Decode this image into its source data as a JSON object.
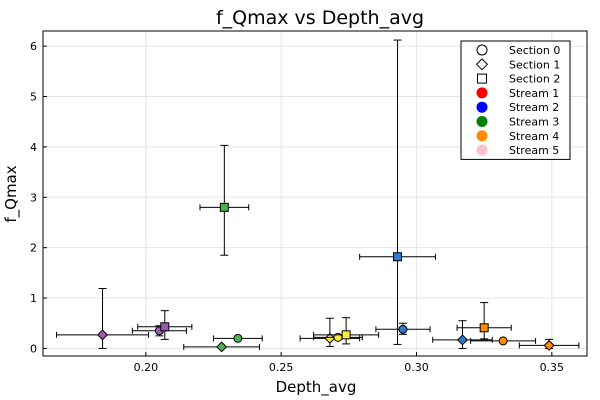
{
  "chart_data": {
    "type": "scatter",
    "title": "f_Qmax vs Depth_avg",
    "xlabel": "Depth_avg",
    "ylabel": "f_Qmax",
    "xlim": [
      0.162,
      0.363
    ],
    "ylim": [
      -0.15,
      6.3
    ],
    "xticks": [
      0.2,
      0.25,
      0.3,
      0.35
    ],
    "xtick_labels": [
      "0.20",
      "0.25",
      "0.30",
      "0.35"
    ],
    "yticks": [
      0,
      1,
      2,
      3,
      4,
      5,
      6
    ],
    "ytick_labels": [
      "0",
      "1",
      "2",
      "3",
      "4",
      "5",
      "6"
    ],
    "grid": true,
    "legend_position": "top-right",
    "legend": [
      {
        "label": "Section 0",
        "marker": "circle",
        "color": "#ffffff"
      },
      {
        "label": "Section 1",
        "marker": "diamond",
        "color": "#ffffff"
      },
      {
        "label": "Section 2",
        "marker": "square",
        "color": "#ffffff"
      },
      {
        "label": "Stream 1",
        "marker": "circle",
        "color": "#ff0000"
      },
      {
        "label": "Stream 2",
        "marker": "circle",
        "color": "#0000ff"
      },
      {
        "label": "Stream 3",
        "marker": "circle",
        "color": "#008000"
      },
      {
        "label": "Stream 4",
        "marker": "circle",
        "color": "#ff8c00"
      },
      {
        "label": "Stream 5",
        "marker": "circle",
        "color": "#ffc0cb"
      }
    ],
    "points": [
      {
        "x": 0.184,
        "y": 0.27,
        "xerr": 0.017,
        "yerr_low": 0.27,
        "yerr_high": 0.92,
        "marker": "diamond",
        "color": "#9b59b6"
      },
      {
        "x": 0.205,
        "y": 0.35,
        "xerr": 0.01,
        "yerr_low": 0.1,
        "yerr_high": 0.1,
        "marker": "circle",
        "color": "#9b59b6"
      },
      {
        "x": 0.207,
        "y": 0.43,
        "xerr": 0.01,
        "yerr_low": 0.25,
        "yerr_high": 0.32,
        "marker": "square",
        "color": "#9b59b6"
      },
      {
        "x": 0.229,
        "y": 2.8,
        "xerr": 0.009,
        "yerr_low": 0.95,
        "yerr_high": 1.23,
        "marker": "square",
        "color": "#4caf50"
      },
      {
        "x": 0.228,
        "y": 0.03,
        "xerr": 0.014,
        "yerr_low": 0.0,
        "yerr_high": 0.0,
        "marker": "diamond",
        "color": "#4caf50"
      },
      {
        "x": 0.234,
        "y": 0.2,
        "xerr": 0.009,
        "yerr_low": 0.0,
        "yerr_high": 0.0,
        "marker": "circle",
        "color": "#4caf50"
      },
      {
        "x": 0.268,
        "y": 0.2,
        "xerr": 0.011,
        "yerr_low": 0.16,
        "yerr_high": 0.4,
        "marker": "diamond",
        "color": "#ffeb3b"
      },
      {
        "x": 0.271,
        "y": 0.22,
        "xerr": 0.009,
        "yerr_low": 0.0,
        "yerr_high": 0.0,
        "marker": "circle",
        "color": "#ffeb3b"
      },
      {
        "x": 0.274,
        "y": 0.27,
        "xerr": 0.012,
        "yerr_low": 0.18,
        "yerr_high": 0.34,
        "marker": "square",
        "color": "#ffeb3b"
      },
      {
        "x": 0.293,
        "y": 1.82,
        "xerr": 0.014,
        "yerr_low": 1.74,
        "yerr_high": 4.3,
        "marker": "square",
        "color": "#2e7bcf"
      },
      {
        "x": 0.295,
        "y": 0.38,
        "xerr": 0.01,
        "yerr_low": 0.1,
        "yerr_high": 0.12,
        "marker": "circle",
        "color": "#2e7bcf"
      },
      {
        "x": 0.317,
        "y": 0.17,
        "xerr": 0.011,
        "yerr_low": 0.17,
        "yerr_high": 0.38,
        "marker": "diamond",
        "color": "#2e7bcf"
      },
      {
        "x": 0.325,
        "y": 0.41,
        "xerr": 0.01,
        "yerr_low": 0.22,
        "yerr_high": 0.5,
        "marker": "square",
        "color": "#ff8c00"
      },
      {
        "x": 0.332,
        "y": 0.15,
        "xerr": 0.012,
        "yerr_low": 0.0,
        "yerr_high": 0.0,
        "marker": "circle",
        "color": "#ff8c00"
      },
      {
        "x": 0.349,
        "y": 0.06,
        "xerr": 0.011,
        "yerr_low": 0.06,
        "yerr_high": 0.12,
        "marker": "diamond",
        "color": "#ff8c00"
      }
    ]
  }
}
